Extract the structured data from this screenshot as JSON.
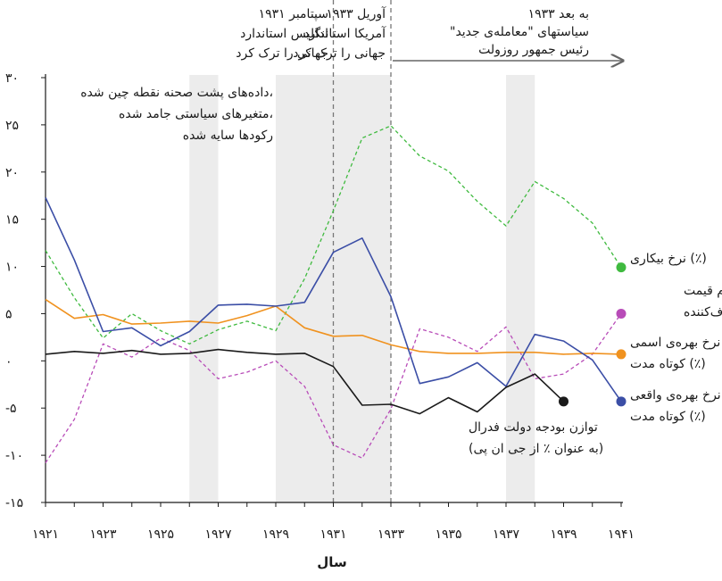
{
  "chart_data": {
    "type": "line",
    "xlabel": "سال",
    "ylabel": "",
    "ylim": [
      -15,
      30
    ],
    "xlim": [
      1921,
      1941
    ],
    "grid": false,
    "x_tick_labels": [
      "۱۹۲۱",
      "۱۹۲۳",
      "۱۹۲۵",
      "۱۹۲۷",
      "۱۹۲۹",
      "۱۹۳۱",
      "۱۹۳۳",
      "۱۹۳۵",
      "۱۹۳۷",
      "۱۹۳۹",
      "۱۹۴۱"
    ],
    "x_ticks": [
      1921,
      1923,
      1925,
      1927,
      1929,
      1931,
      1933,
      1935,
      1937,
      1939,
      1941
    ],
    "y_ticks": [
      -15,
      -10,
      -5,
      0,
      5,
      10,
      15,
      20,
      25,
      30
    ],
    "y_tick_labels": [
      "-۱۵",
      "-۱۰",
      "-۵",
      "۰",
      "۵",
      "۱۰",
      "۱۵",
      "۲۰",
      "۲۵",
      "۳۰"
    ],
    "shaded_years": [
      [
        1926,
        1927
      ],
      [
        1929,
        1931
      ],
      [
        1931,
        1933
      ],
      [
        1937,
        1938
      ]
    ],
    "vlines": [
      1931,
      1933
    ],
    "series": [
      {
        "name_lines": [
          "نرخ بیکاری (٪)"
        ],
        "color": "#3fba3f",
        "dash": true,
        "x": [
          1921,
          1922,
          1923,
          1924,
          1925,
          1926,
          1927,
          1928,
          1929,
          1930,
          1931,
          1932,
          1933,
          1934,
          1935,
          1936,
          1937,
          1938,
          1939,
          1940,
          1941
        ],
        "values": [
          11.7,
          6.7,
          2.4,
          5.0,
          3.2,
          1.8,
          3.3,
          4.2,
          3.2,
          8.7,
          15.9,
          23.6,
          24.9,
          21.7,
          20.1,
          16.9,
          14.3,
          19.0,
          17.2,
          14.6,
          9.9
        ]
      },
      {
        "name_lines": [
          "تورم قیمت",
          "مصرف‌کننده (٪)"
        ],
        "color": "#b84cb8",
        "dash": true,
        "x": [
          1921,
          1922,
          1923,
          1924,
          1925,
          1926,
          1927,
          1928,
          1929,
          1930,
          1931,
          1932,
          1933,
          1934,
          1935,
          1936,
          1937,
          1938,
          1939,
          1940,
          1941
        ],
        "values": [
          -10.8,
          -6.2,
          1.8,
          0.4,
          2.4,
          1.1,
          -1.9,
          -1.2,
          0.0,
          -2.7,
          -8.9,
          -10.3,
          -5.1,
          3.4,
          2.5,
          1.0,
          3.6,
          -1.9,
          -1.4,
          0.7,
          5.0
        ]
      },
      {
        "name_lines": [
          "نرخ بهره‌ی اسمی",
          "کوتاه مدت (٪)"
        ],
        "color": "#f0921f",
        "dash": false,
        "x": [
          1921,
          1922,
          1923,
          1924,
          1925,
          1926,
          1927,
          1928,
          1929,
          1930,
          1931,
          1932,
          1933,
          1934,
          1935,
          1936,
          1937,
          1938,
          1939,
          1940,
          1941
        ],
        "values": [
          6.5,
          4.5,
          4.9,
          3.9,
          4.0,
          4.2,
          4.0,
          4.8,
          5.8,
          3.5,
          2.6,
          2.7,
          1.7,
          1.0,
          0.8,
          0.8,
          0.9,
          0.9,
          0.7,
          0.8,
          0.7
        ]
      },
      {
        "name_lines": [
          "نرخ بهره‌ی واقعی",
          "کوتاه مدت (٪)"
        ],
        "color": "#3b4ea6",
        "dash": false,
        "x": [
          1921,
          1922,
          1923,
          1924,
          1925,
          1926,
          1927,
          1928,
          1929,
          1930,
          1931,
          1932,
          1933,
          1934,
          1935,
          1936,
          1937,
          1938,
          1939,
          1940,
          1941
        ],
        "values": [
          17.3,
          10.7,
          3.1,
          3.5,
          1.6,
          3.1,
          5.9,
          6.0,
          5.8,
          6.2,
          11.5,
          13.0,
          6.8,
          -2.4,
          -1.7,
          -0.2,
          -2.7,
          2.8,
          2.1,
          0.1,
          -4.3
        ]
      },
      {
        "name_lines": [
          "توازن بودجه دولت فدرال",
          "(به عنوان ٪ از جی ان پی)"
        ],
        "color": "#1a1a1a",
        "dash": false,
        "x": [
          1921,
          1922,
          1923,
          1924,
          1925,
          1926,
          1927,
          1928,
          1929,
          1930,
          1931,
          1932,
          1933,
          1934,
          1935,
          1936,
          1937,
          1938,
          1939
        ],
        "values": [
          0.7,
          1.0,
          0.8,
          1.1,
          0.7,
          0.8,
          1.2,
          0.9,
          0.7,
          0.8,
          -0.6,
          -4.7,
          -4.6,
          -5.6,
          -3.9,
          -5.4,
          -2.8,
          -1.4,
          -4.3
        ]
      }
    ]
  },
  "annotations": {
    "note_lines": [
      "داده‌های پشت صحنه نقطه چین شده،",
      "متغیرهای سیاستی جامد شده،",
      "رکودها سایه شده"
    ],
    "event_1931_lines": [
      "سپتامبر ۱۹۳۱",
      "انگلیس استاندارد",
      "جهانی را ترک کرد"
    ],
    "event_1933_lines": [
      "آوریل ۱۹۳۳",
      "آمریکا استاندارد",
      "جهانی را ترک کرد"
    ],
    "new_deal_lines": [
      "۱۹۳۳ به بعد",
      "\"سیاستهای \"معامله‌ی جدید",
      "رئیس جمهور روزولت"
    ]
  }
}
